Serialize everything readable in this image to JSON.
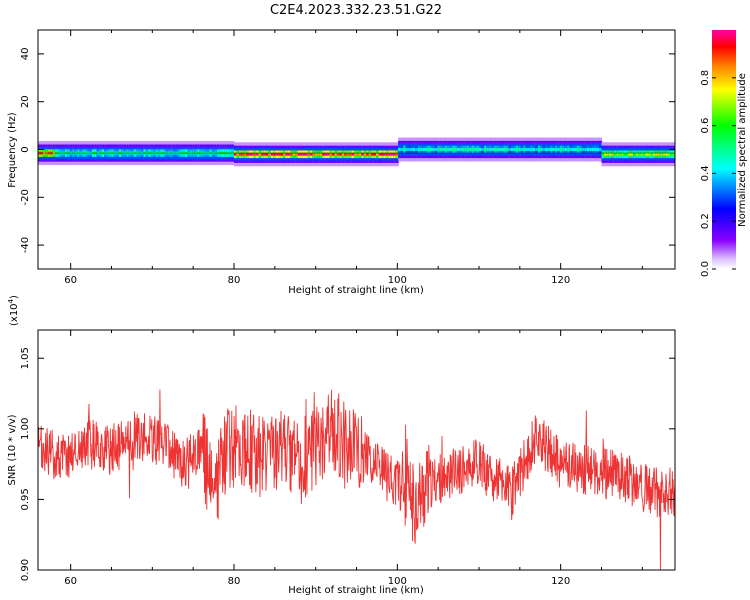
{
  "title": "C2E4.2023.332.23.51.G22",
  "chart_data": [
    {
      "type": "heatmap",
      "xlabel": "Height of straight line (km)",
      "ylabel": "Frequency (Hz)",
      "xlim": [
        56,
        134
      ],
      "ylim": [
        -50,
        50
      ],
      "xticks": [
        60,
        80,
        100,
        120
      ],
      "yticks": [
        -40,
        -20,
        0,
        20,
        40
      ],
      "ytick_labels": [
        "-40",
        "-20",
        "0",
        "20",
        "40"
      ],
      "grid": false,
      "colorbar": {
        "label": "Normalized spectral amplitude",
        "range": [
          0,
          1
        ],
        "ticks": [
          0.0,
          0.2,
          0.4,
          0.6,
          0.8
        ],
        "tick_labels": [
          "0.0",
          "0.2",
          "0.4",
          "0.6",
          "0.8"
        ],
        "colormap": "gist_rainbow_r"
      },
      "segments": [
        {
          "x": [
            56,
            58
          ],
          "center_freq": -1.5,
          "peak_amplitude": 0.9
        },
        {
          "x": [
            58,
            80
          ],
          "center_freq": -1.5,
          "peak_amplitude": 0.5
        },
        {
          "x": [
            80,
            100
          ],
          "center_freq": -2.0,
          "peak_amplitude": 0.95
        },
        {
          "x": [
            100,
            125
          ],
          "center_freq": 0.0,
          "peak_amplitude": 0.45
        },
        {
          "x": [
            125,
            134
          ],
          "center_freq": -2.0,
          "peak_amplitude": 0.7
        }
      ]
    },
    {
      "type": "line",
      "xlabel": "Height of straight line (km)",
      "ylabel": "SNR (10 * v/v)",
      "scale_label": "(x10",
      "scale_exp": "4",
      "scale_close": ")",
      "xlim": [
        56,
        134
      ],
      "ylim": [
        0.9,
        1.07
      ],
      "xticks": [
        60,
        80,
        100,
        120
      ],
      "yticks": [
        0.9,
        0.95,
        1.0,
        1.05
      ],
      "ytick_labels": [
        "0.90",
        "0.95",
        "1.00",
        "1.05"
      ],
      "grid": false,
      "color": "#ee3333",
      "x": [
        56,
        59,
        62,
        65,
        68,
        71,
        74,
        76,
        77.5,
        79,
        81,
        83,
        85,
        88,
        91,
        92,
        94,
        97,
        99,
        101,
        102,
        104,
        107,
        110,
        113,
        114,
        117,
        120,
        124,
        128,
        131,
        134
      ],
      "y": [
        0.985,
        0.98,
        0.99,
        0.985,
        0.995,
        0.99,
        0.975,
        0.99,
        0.95,
        0.985,
        0.99,
        0.98,
        0.985,
        0.975,
        0.995,
        1.0,
        0.99,
        0.975,
        0.965,
        0.955,
        0.945,
        0.96,
        0.97,
        0.975,
        0.96,
        0.955,
        0.995,
        0.975,
        0.97,
        0.965,
        0.955,
        0.955
      ]
    }
  ]
}
